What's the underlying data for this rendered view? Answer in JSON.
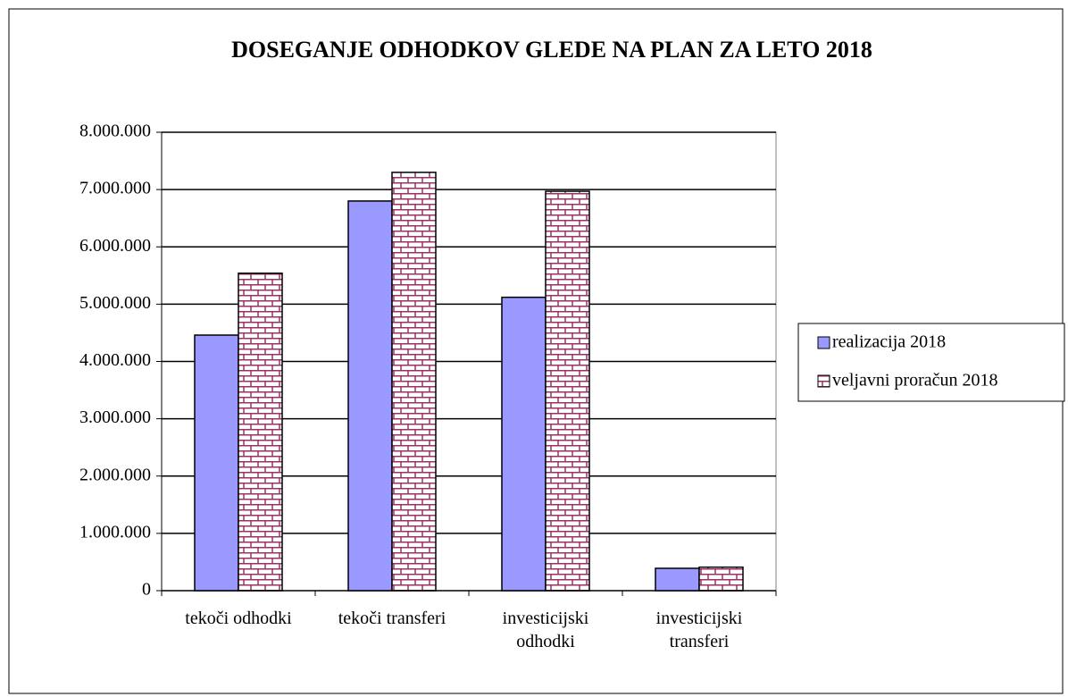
{
  "chart_data": {
    "type": "bar",
    "title": "DOSEGANJE ODHODKOV GLEDE NA PLAN ZA LETO 2018",
    "categories": [
      "tekoči odhodki",
      "tekoči transferi",
      "investicijski odhodki",
      "investicijski transferi"
    ],
    "series": [
      {
        "name": "realizacija 2018",
        "color": "#9999ff",
        "values": [
          4460000,
          6800000,
          5120000,
          390000
        ]
      },
      {
        "name": "veljavni proračun 2018",
        "color": "#993366",
        "pattern": "brick",
        "values": [
          5540000,
          7300000,
          6970000,
          410000
        ]
      }
    ],
    "ylim": [
      0,
      8000000
    ],
    "yticks": [
      0,
      {
        "value": 1000000,
        "label": "1.000.000"
      },
      {
        "value": 2000000,
        "label": "2.000.000"
      },
      {
        "value": 3000000,
        "label": "3.000.000"
      },
      {
        "value": 4000000,
        "label": "4.000.000"
      },
      {
        "value": 5000000,
        "label": "5.000.000"
      },
      {
        "value": 6000000,
        "label": "6.000.000"
      },
      {
        "value": 7000000,
        "label": "7.000.000"
      },
      {
        "value": 8000000,
        "label": "8.000.000"
      }
    ],
    "grid": true,
    "legend": "right"
  }
}
